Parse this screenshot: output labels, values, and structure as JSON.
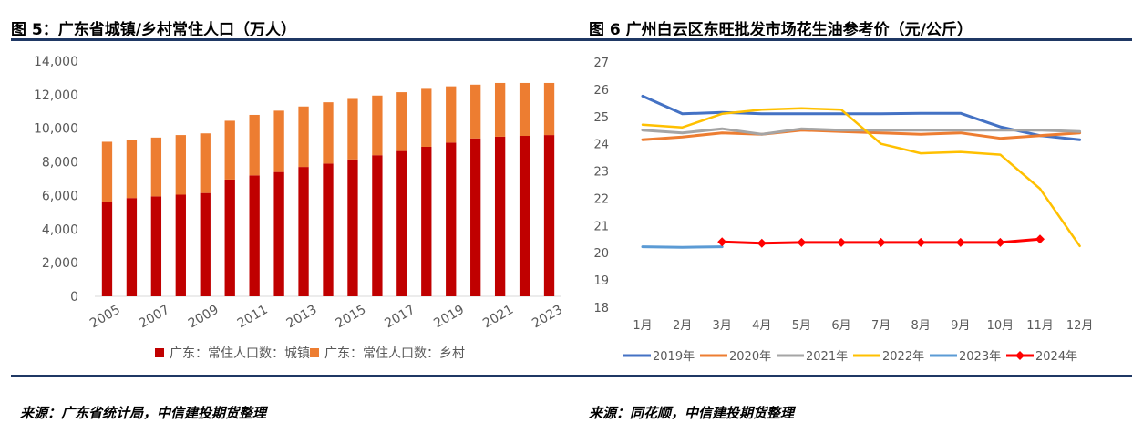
{
  "page": {
    "left_title": "图 5：广东省城镇/乡村常住人口（万人）",
    "right_title": "图 6 广州白云区东旺批发市场花生油参考价（元/公斤）",
    "left_source": "来源：广东省统计局，中信建投期货整理",
    "right_source": "来源：同花顺，中信建投期货整理"
  },
  "colors": {
    "rule": "#1f3864",
    "urban": "#c00000",
    "rural": "#ed7d31",
    "grid": "#d9d9d9",
    "s2019": "#4472c4",
    "s2020": "#ed7d31",
    "s2021": "#a5a5a5",
    "s2022": "#ffc000",
    "s2023": "#5b9bd5",
    "s2024": "#ff0000"
  },
  "chart_data": [
    {
      "type": "bar",
      "stacked": true,
      "categories": [
        "2005",
        "2006",
        "2007",
        "2008",
        "2009",
        "2010",
        "2011",
        "2012",
        "2013",
        "2014",
        "2015",
        "2016",
        "2017",
        "2018",
        "2019",
        "2020",
        "2021",
        "2022",
        "2023"
      ],
      "x_tick_labels": [
        "2005",
        "2007",
        "2009",
        "2011",
        "2013",
        "2015",
        "2017",
        "2019",
        "2021",
        "2023"
      ],
      "y_tick_labels": [
        "0",
        "2,000",
        "4,000",
        "6,000",
        "8,000",
        "10,000",
        "12,000",
        "14,000"
      ],
      "series": [
        {
          "name": "广东：常住人口数：城镇",
          "values": [
            5600,
            5850,
            5950,
            6050,
            6150,
            6950,
            7200,
            7400,
            7700,
            7900,
            8150,
            8400,
            8650,
            8900,
            9150,
            9400,
            9500,
            9550,
            9600
          ]
        },
        {
          "name": "广东：常住人口数：乡村",
          "values": [
            3600,
            3450,
            3500,
            3550,
            3550,
            3500,
            3600,
            3650,
            3600,
            3650,
            3600,
            3550,
            3500,
            3450,
            3350,
            3200,
            3200,
            3150,
            3100
          ]
        }
      ],
      "ylim": [
        0,
        14000
      ],
      "grid": false,
      "legend_position": "bottom"
    },
    {
      "type": "line",
      "x": [
        "1月",
        "2月",
        "3月",
        "4月",
        "5月",
        "6月",
        "7月",
        "8月",
        "9月",
        "10月",
        "11月",
        "12月"
      ],
      "y_tick_labels": [
        "18",
        "19",
        "20",
        "21",
        "22",
        "23",
        "24",
        "25",
        "26",
        "27"
      ],
      "ylim": [
        18,
        27
      ],
      "grid": false,
      "legend_position": "bottom",
      "series": [
        {
          "name": "2019年",
          "values": [
            25.75,
            25.1,
            25.15,
            25.1,
            25.1,
            25.1,
            25.1,
            25.12,
            25.12,
            24.62,
            24.3,
            24.15
          ]
        },
        {
          "name": "2020年",
          "values": [
            24.15,
            24.25,
            24.4,
            24.35,
            24.5,
            24.45,
            24.4,
            24.35,
            24.4,
            24.2,
            24.3,
            24.4
          ]
        },
        {
          "name": "2021年",
          "values": [
            24.5,
            24.4,
            24.55,
            24.35,
            24.55,
            24.5,
            24.5,
            24.5,
            24.5,
            24.5,
            24.5,
            24.45
          ]
        },
        {
          "name": "2022年",
          "values": [
            24.7,
            24.6,
            25.1,
            25.25,
            25.3,
            25.25,
            24.0,
            23.65,
            23.7,
            23.6,
            22.35,
            20.25
          ]
        },
        {
          "name": "2023年",
          "values": [
            20.22,
            20.2,
            20.22,
            null,
            null,
            null,
            null,
            null,
            null,
            null,
            null,
            null
          ]
        },
        {
          "name": "2024年",
          "values": [
            null,
            null,
            20.4,
            20.35,
            20.38,
            20.38,
            20.38,
            20.38,
            20.38,
            20.38,
            20.5,
            null
          ]
        }
      ]
    }
  ]
}
